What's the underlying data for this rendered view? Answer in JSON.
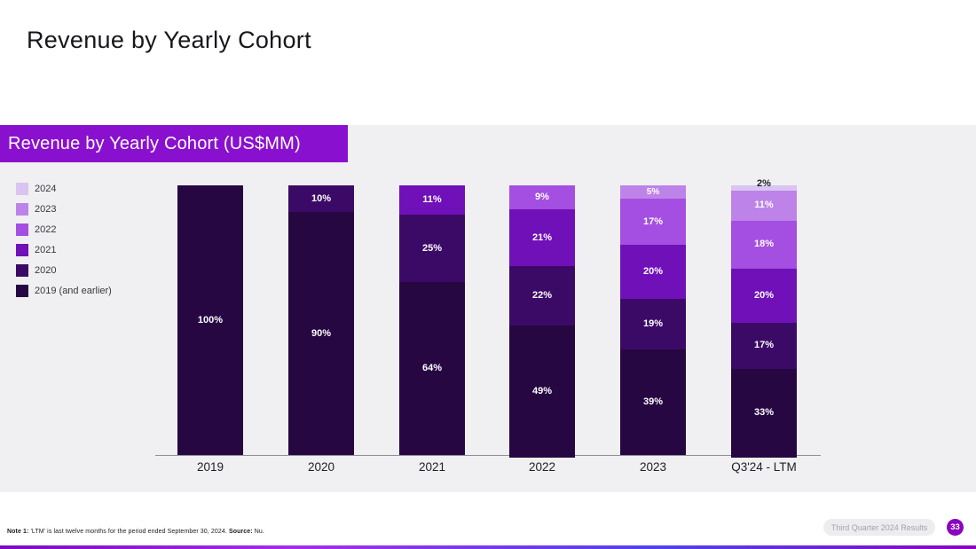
{
  "slide": {
    "title": "Revenue by Yearly Cohort",
    "banner_title": "Revenue by Yearly Cohort (US$MM)",
    "footer": {
      "note_label": "Note 1:",
      "note_text": " 'LTM' is last twelve months for the period ended September 30, 2024. ",
      "source_label": "Source:",
      "source_text": " Nu.",
      "pill_label": "Third Quarter 2024 Results",
      "page_number": "33"
    }
  },
  "palette": {
    "banner_purple": "#8a10d0",
    "page_circle_purple": "#8a05be",
    "panel_gray": "#f0eff1",
    "axis_gray": "#8f8f94",
    "cohort_2019": "#270742",
    "cohort_2020": "#3b0a66",
    "cohort_2021": "#6f10b8",
    "cohort_2022": "#a44fe2",
    "cohort_2023": "#bd83e9",
    "cohort_2024": "#d9c4f2"
  },
  "legend": [
    {
      "label": "2024",
      "color": "#d9c4f2"
    },
    {
      "label": "2023",
      "color": "#bd83e9"
    },
    {
      "label": "2022",
      "color": "#a44fe2"
    },
    {
      "label": "2021",
      "color": "#6f10b8"
    },
    {
      "label": "2020",
      "color": "#3b0a66"
    },
    {
      "label": "2019 (and earlier)",
      "color": "#270742"
    }
  ],
  "chart_data": {
    "type": "bar",
    "subtype": "stacked-100-percent",
    "title": "Revenue by Yearly Cohort (US$MM)",
    "unit": "%",
    "categories": [
      "2019",
      "2020",
      "2021",
      "2022",
      "2023",
      "Q3'24 - LTM"
    ],
    "series": [
      {
        "name": "2019 (and earlier)",
        "color": "#270742",
        "values": [
          100,
          90,
          64,
          49,
          39,
          33
        ]
      },
      {
        "name": "2020",
        "color": "#3b0a66",
        "values": [
          0,
          10,
          25,
          22,
          19,
          17
        ]
      },
      {
        "name": "2021",
        "color": "#6f10b8",
        "values": [
          0,
          0,
          11,
          21,
          20,
          20
        ]
      },
      {
        "name": "2022",
        "color": "#a44fe2",
        "values": [
          0,
          0,
          0,
          9,
          17,
          18
        ]
      },
      {
        "name": "2023",
        "color": "#bd83e9",
        "values": [
          0,
          0,
          0,
          0,
          5,
          11
        ]
      },
      {
        "name": "2024",
        "color": "#d9c4f2",
        "values": [
          0,
          0,
          0,
          0,
          0,
          2
        ]
      }
    ],
    "ylim": [
      0,
      100
    ],
    "grid": false,
    "legend_position": "left-top",
    "data_labels": "percent-inside-segments"
  }
}
